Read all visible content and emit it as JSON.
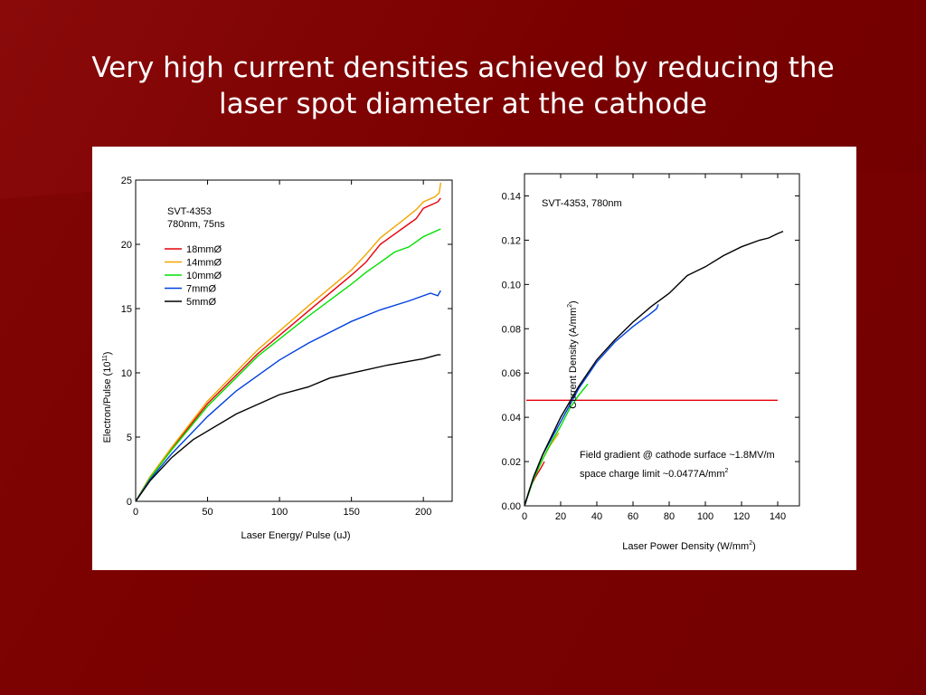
{
  "slide": {
    "title_line1": "Very high current densities achieved by reducing the",
    "title_line2": "laser spot diameter at the cathode"
  },
  "chart_data": [
    {
      "type": "line",
      "xlabel": "Laser Energy/ Pulse (uJ)",
      "ylabel_main": "Electron/Pulse (10",
      "ylabel_sup": "11",
      "ylabel_end": ")",
      "xlim": [
        0,
        220
      ],
      "ylim": [
        0,
        25
      ],
      "xticks": [
        0,
        50,
        100,
        150,
        200
      ],
      "yticks": [
        0,
        5,
        10,
        15,
        20,
        25
      ],
      "annotation": [
        "SVT-4353",
        "780nm, 75ns"
      ],
      "legend_position": "upper-left",
      "series": [
        {
          "name": "18mmØ",
          "color": "#e8000b",
          "x": [
            0,
            10,
            25,
            50,
            85,
            120,
            150,
            160,
            170,
            185,
            195,
            200,
            210,
            212
          ],
          "y": [
            0,
            1.9,
            4.1,
            7.6,
            11.5,
            14.8,
            17.6,
            18.6,
            20.0,
            21.2,
            22.0,
            22.8,
            23.3,
            23.6
          ]
        },
        {
          "name": "14mmØ",
          "color": "#f2a500",
          "x": [
            0,
            10,
            25,
            50,
            85,
            120,
            150,
            160,
            170,
            185,
            195,
            200,
            208,
            211,
            212
          ],
          "y": [
            0,
            1.9,
            4.2,
            7.8,
            11.8,
            15.2,
            18.0,
            19.2,
            20.5,
            21.8,
            22.7,
            23.3,
            23.7,
            24.0,
            24.8
          ]
        },
        {
          "name": "10mmØ",
          "color": "#00e000",
          "x": [
            0,
            10,
            25,
            50,
            85,
            120,
            150,
            160,
            170,
            180,
            190,
            200,
            212
          ],
          "y": [
            0,
            1.8,
            4.0,
            7.4,
            11.3,
            14.4,
            16.9,
            17.8,
            18.6,
            19.4,
            19.8,
            20.6,
            21.2
          ]
        },
        {
          "name": "7mmØ",
          "color": "#0040e0",
          "x": [
            0,
            10,
            25,
            50,
            70,
            100,
            120,
            150,
            170,
            190,
            205,
            210,
            212
          ],
          "y": [
            0,
            1.7,
            3.7,
            6.6,
            8.6,
            11.0,
            12.3,
            14.0,
            14.9,
            15.6,
            16.2,
            16.0,
            16.4
          ]
        },
        {
          "name": "5mmØ",
          "color": "#000000",
          "x": [
            0,
            10,
            25,
            40,
            70,
            100,
            120,
            135,
            155,
            175,
            195,
            200,
            210,
            212
          ],
          "y": [
            0,
            1.6,
            3.4,
            4.8,
            6.8,
            8.3,
            8.9,
            9.6,
            10.1,
            10.6,
            11.0,
            11.1,
            11.4,
            11.4
          ]
        }
      ]
    },
    {
      "type": "line",
      "xlabel_main": "Laser Power Density (W/mm",
      "xlabel_sup": "2",
      "xlabel_end": ")",
      "ylabel_main": "Current Density (A/mm",
      "ylabel_sup": "2",
      "ylabel_end": ")",
      "xlim": [
        0,
        152
      ],
      "ylim": [
        0,
        0.15
      ],
      "xticks": [
        0,
        20,
        40,
        60,
        80,
        100,
        120,
        140
      ],
      "yticks": [
        "0.00",
        "0.02",
        "0.04",
        "0.06",
        "0.08",
        "0.10",
        "0.12",
        "0.14"
      ],
      "annotation": "SVT-4353, 780nm",
      "note_line1": "Field gradient @ cathode surface ~1.8MV/m",
      "note_line2_main": "space charge limit ~0.0477A/mm",
      "note_line2_sup": "2",
      "space_charge_limit": 0.0477,
      "hline_x_range": [
        1,
        140
      ],
      "hline_color": "#e8000b",
      "series": [
        {
          "color": "#e8000b",
          "x": [
            0,
            3,
            6,
            9,
            11
          ],
          "y": [
            0,
            0.008,
            0.013,
            0.017,
            0.02
          ]
        },
        {
          "color": "#f2a500",
          "x": [
            0,
            3,
            6,
            10,
            14,
            19
          ],
          "y": [
            0,
            0.008,
            0.014,
            0.021,
            0.027,
            0.033
          ]
        },
        {
          "color": "#00e000",
          "x": [
            0,
            5,
            10,
            15,
            20,
            25,
            30,
            35
          ],
          "y": [
            0,
            0.012,
            0.021,
            0.029,
            0.036,
            0.044,
            0.05,
            0.055
          ]
        },
        {
          "color": "#0040e0",
          "x": [
            0,
            5,
            10,
            20,
            30,
            40,
            50,
            60,
            70,
            73,
            74
          ],
          "y": [
            0,
            0.013,
            0.023,
            0.038,
            0.053,
            0.065,
            0.074,
            0.081,
            0.087,
            0.089,
            0.091
          ]
        },
        {
          "color": "#000000",
          "x": [
            0,
            5,
            10,
            20,
            30,
            40,
            50,
            60,
            70,
            80,
            90,
            100,
            110,
            120,
            130,
            135,
            140,
            143
          ],
          "y": [
            0,
            0.013,
            0.023,
            0.04,
            0.054,
            0.066,
            0.075,
            0.083,
            0.09,
            0.096,
            0.104,
            0.108,
            0.113,
            0.117,
            0.12,
            0.121,
            0.123,
            0.124
          ]
        }
      ]
    }
  ]
}
